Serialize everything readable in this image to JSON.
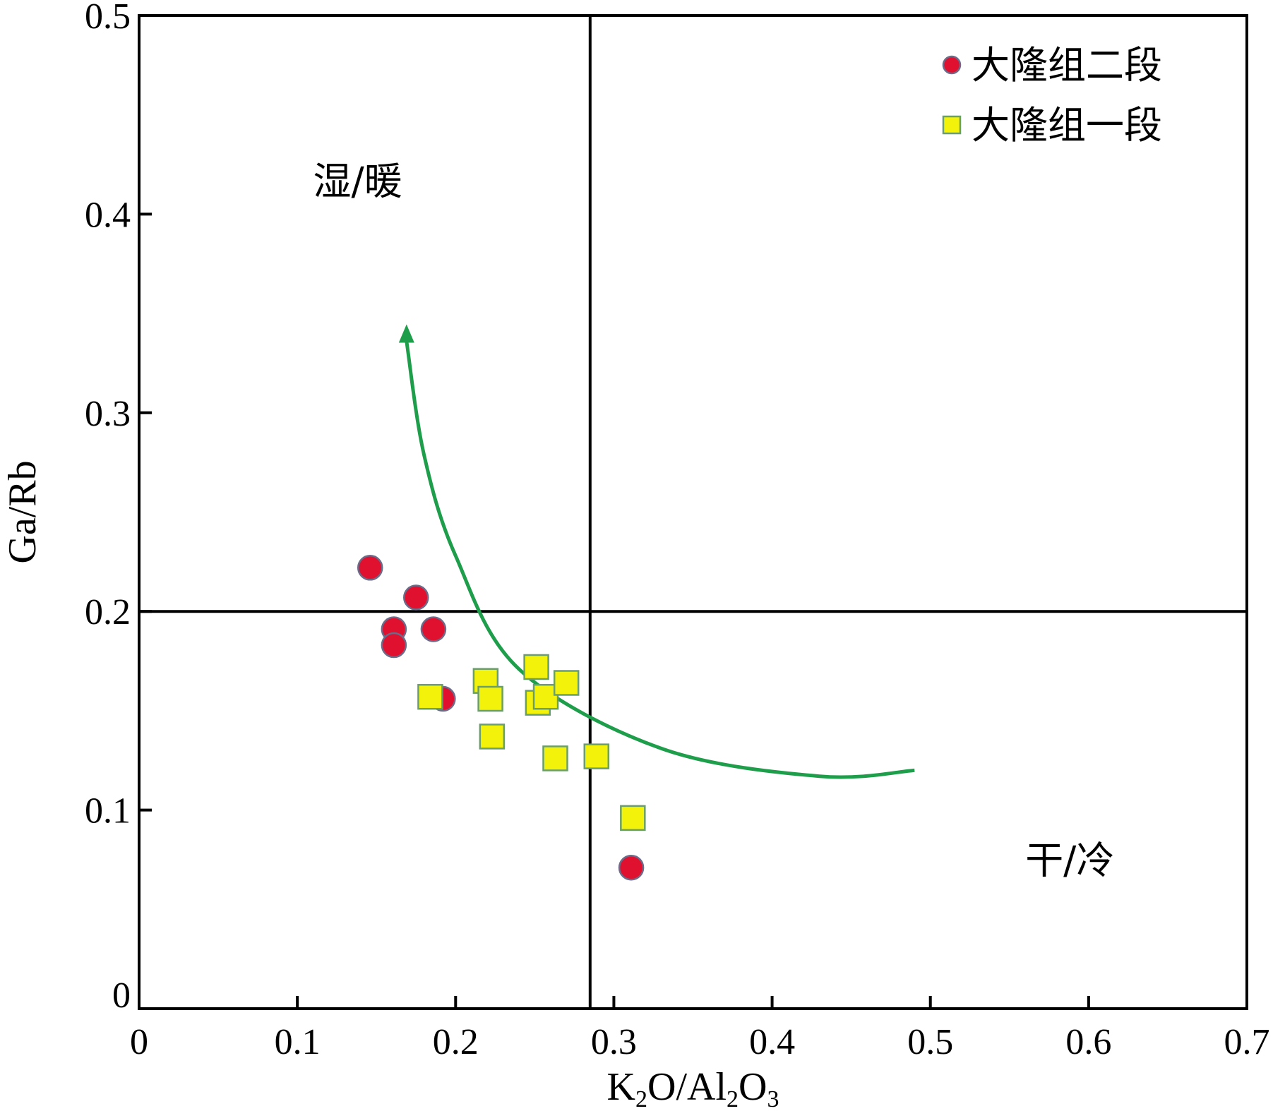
{
  "chart_data": {
    "type": "scatter",
    "xlabel": {
      "parts": [
        "K",
        "2",
        "O/Al",
        "2",
        "O",
        "3"
      ]
    },
    "ylabel": "Ga/Rb",
    "xlim": [
      0,
      0.7
    ],
    "ylim": [
      0,
      0.5
    ],
    "x_ticks": [
      0,
      0.1,
      0.2,
      0.3,
      0.4,
      0.5,
      0.6,
      0.7
    ],
    "x_tick_labels": [
      "0",
      "0.1",
      "0.2",
      "0.3",
      "0.4",
      "0.5",
      "0.6",
      "0.7"
    ],
    "y_ticks": [
      0,
      0.1,
      0.2,
      0.3,
      0.4,
      0.5
    ],
    "y_tick_labels": [
      "0",
      "0.1",
      "0.2",
      "0.3",
      "0.4",
      "0.5"
    ],
    "divider_x": 0.285,
    "divider_y": 0.2,
    "regions": [
      {
        "label": "湿/暖",
        "x": 0.11,
        "y": 0.41
      },
      {
        "label": "干/冷",
        "x": 0.56,
        "y": 0.068
      }
    ],
    "legend_position": "top-right",
    "series": [
      {
        "name": "大隆组二段",
        "marker": "circle",
        "color": "#e0102f",
        "points": [
          [
            0.146,
            0.222
          ],
          [
            0.175,
            0.207
          ],
          [
            0.161,
            0.191
          ],
          [
            0.186,
            0.191
          ],
          [
            0.161,
            0.183
          ],
          [
            0.192,
            0.156
          ],
          [
            0.311,
            0.071
          ]
        ]
      },
      {
        "name": "大隆组一段",
        "marker": "square",
        "color": "#f2f20a",
        "points": [
          [
            0.184,
            0.157
          ],
          [
            0.219,
            0.165
          ],
          [
            0.222,
            0.156
          ],
          [
            0.251,
            0.172
          ],
          [
            0.252,
            0.154
          ],
          [
            0.257,
            0.157
          ],
          [
            0.27,
            0.164
          ],
          [
            0.223,
            0.137
          ],
          [
            0.263,
            0.126
          ],
          [
            0.289,
            0.127
          ],
          [
            0.312,
            0.096
          ]
        ]
      }
    ],
    "trend_arrow": {
      "color": "#1e9e4a",
      "points": [
        [
          0.49,
          0.12
        ],
        [
          0.43,
          0.117
        ],
        [
          0.33,
          0.131
        ],
        [
          0.24,
          0.171
        ],
        [
          0.2,
          0.228
        ],
        [
          0.18,
          0.279
        ],
        [
          0.169,
          0.336
        ]
      ]
    }
  }
}
